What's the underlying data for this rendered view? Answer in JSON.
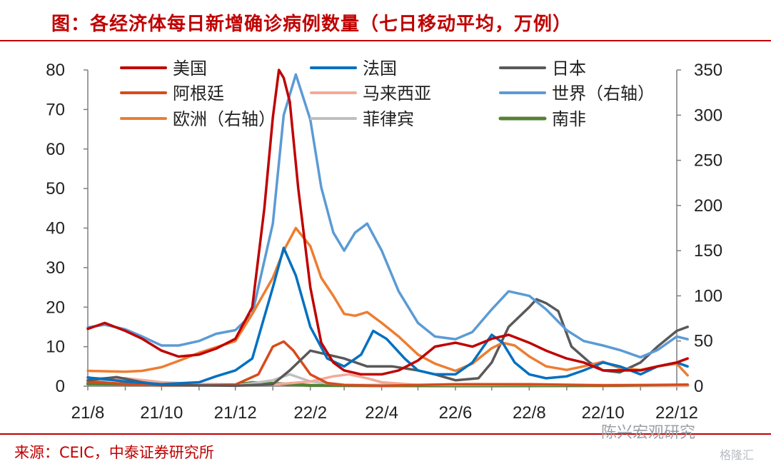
{
  "title": "图：各经济体每日新增确诊病例数量（七日移动平均，万例）",
  "source": "来源：CEIC，中泰证券研究所",
  "watermarks": [
    "陈兴宏观研究",
    "格隆汇"
  ],
  "chart_data": {
    "type": "line",
    "title": "图：各经济体每日新增确诊病例数量（七日移动平均，万例）",
    "x_tick_labels": [
      "21/8",
      "21/10",
      "21/12",
      "22/2",
      "22/4",
      "22/6",
      "22/8",
      "22/10",
      "22/12"
    ],
    "x_range": [
      "2021-08",
      "2022-12"
    ],
    "left_axis": {
      "ylim": [
        0,
        80
      ],
      "ticks": [
        0,
        10,
        20,
        30,
        40,
        50,
        60,
        70,
        80
      ]
    },
    "right_axis": {
      "ylim": [
        0,
        350
      ],
      "ticks": [
        0,
        50,
        100,
        150,
        200,
        250,
        300,
        350
      ]
    },
    "legend": {
      "placement": "top",
      "columns": 3
    },
    "series": [
      {
        "name": "美国",
        "axis": "left",
        "color": "#c00000",
        "points": [
          [
            "2021-08-01",
            14.5
          ],
          [
            "2021-08-15",
            16
          ],
          [
            "2021-09-01",
            14
          ],
          [
            "2021-09-15",
            12
          ],
          [
            "2021-10-01",
            9
          ],
          [
            "2021-10-15",
            7.5
          ],
          [
            "2021-11-01",
            8
          ],
          [
            "2021-11-15",
            9.5
          ],
          [
            "2021-12-01",
            12
          ],
          [
            "2021-12-15",
            20
          ],
          [
            "2021-12-25",
            45
          ],
          [
            "2022-01-01",
            68
          ],
          [
            "2022-01-06",
            80
          ],
          [
            "2022-01-10",
            78
          ],
          [
            "2022-01-15",
            72
          ],
          [
            "2022-01-22",
            50
          ],
          [
            "2022-02-01",
            25
          ],
          [
            "2022-02-10",
            11
          ],
          [
            "2022-02-20",
            6
          ],
          [
            "2022-03-01",
            4
          ],
          [
            "2022-03-15",
            3
          ],
          [
            "2022-04-01",
            3
          ],
          [
            "2022-04-15",
            4
          ],
          [
            "2022-05-01",
            6.5
          ],
          [
            "2022-05-15",
            10
          ],
          [
            "2022-06-01",
            11
          ],
          [
            "2022-06-15",
            10
          ],
          [
            "2022-07-01",
            12
          ],
          [
            "2022-07-15",
            13
          ],
          [
            "2022-08-01",
            11
          ],
          [
            "2022-08-15",
            9
          ],
          [
            "2022-09-01",
            7
          ],
          [
            "2022-09-15",
            6
          ],
          [
            "2022-10-01",
            4
          ],
          [
            "2022-10-15",
            4
          ],
          [
            "2022-11-01",
            4
          ],
          [
            "2022-11-15",
            5
          ],
          [
            "2022-12-01",
            6
          ],
          [
            "2022-12-10",
            7
          ]
        ]
      },
      {
        "name": "阿根廷",
        "axis": "left",
        "color": "#d84a1b",
        "points": [
          [
            "2021-08-01",
            1.2
          ],
          [
            "2021-09-01",
            0.6
          ],
          [
            "2021-10-01",
            0.2
          ],
          [
            "2021-11-01",
            0.2
          ],
          [
            "2021-12-01",
            0.4
          ],
          [
            "2021-12-20",
            3
          ],
          [
            "2022-01-01",
            10
          ],
          [
            "2022-01-10",
            11.3
          ],
          [
            "2022-01-18",
            9
          ],
          [
            "2022-02-01",
            3
          ],
          [
            "2022-02-15",
            0.8
          ],
          [
            "2022-03-01",
            0.3
          ],
          [
            "2022-04-01",
            0.1
          ],
          [
            "2022-06-01",
            0.5
          ],
          [
            "2022-08-01",
            0.5
          ],
          [
            "2022-10-01",
            0.2
          ],
          [
            "2022-12-10",
            0.4
          ]
        ]
      },
      {
        "name": "欧洲（右轴）",
        "axis": "right",
        "color": "#ed7d31",
        "points": [
          [
            "2021-08-01",
            17
          ],
          [
            "2021-09-01",
            16
          ],
          [
            "2021-09-15",
            17
          ],
          [
            "2021-10-01",
            21
          ],
          [
            "2021-10-15",
            28
          ],
          [
            "2021-11-01",
            37
          ],
          [
            "2021-11-15",
            43
          ],
          [
            "2021-12-01",
            50
          ],
          [
            "2021-12-15",
            80
          ],
          [
            "2022-01-01",
            120
          ],
          [
            "2022-01-10",
            150
          ],
          [
            "2022-01-20",
            175
          ],
          [
            "2022-02-01",
            155
          ],
          [
            "2022-02-10",
            120
          ],
          [
            "2022-02-20",
            100
          ],
          [
            "2022-03-01",
            80
          ],
          [
            "2022-03-10",
            78
          ],
          [
            "2022-03-20",
            82
          ],
          [
            "2022-04-01",
            70
          ],
          [
            "2022-04-15",
            55
          ],
          [
            "2022-05-01",
            35
          ],
          [
            "2022-05-15",
            25
          ],
          [
            "2022-06-01",
            17
          ],
          [
            "2022-06-15",
            25
          ],
          [
            "2022-07-01",
            42
          ],
          [
            "2022-07-10",
            48
          ],
          [
            "2022-07-20",
            45
          ],
          [
            "2022-08-01",
            33
          ],
          [
            "2022-08-15",
            22
          ],
          [
            "2022-09-01",
            18
          ],
          [
            "2022-09-15",
            22
          ],
          [
            "2022-10-01",
            27
          ],
          [
            "2022-10-15",
            20
          ],
          [
            "2022-11-01",
            18
          ],
          [
            "2022-11-15",
            22
          ],
          [
            "2022-12-01",
            25
          ],
          [
            "2022-12-10",
            12
          ]
        ]
      },
      {
        "name": "法国",
        "axis": "left",
        "color": "#0070c0",
        "points": [
          [
            "2021-08-01",
            2.2
          ],
          [
            "2021-09-01",
            1.2
          ],
          [
            "2021-10-01",
            0.5
          ],
          [
            "2021-11-01",
            1
          ],
          [
            "2021-11-15",
            2.5
          ],
          [
            "2021-12-01",
            4
          ],
          [
            "2021-12-15",
            7
          ],
          [
            "2022-01-01",
            25
          ],
          [
            "2022-01-10",
            35
          ],
          [
            "2022-01-20",
            28
          ],
          [
            "2022-02-01",
            15
          ],
          [
            "2022-02-15",
            7
          ],
          [
            "2022-03-01",
            5
          ],
          [
            "2022-03-15",
            8
          ],
          [
            "2022-03-25",
            14
          ],
          [
            "2022-04-05",
            12
          ],
          [
            "2022-04-20",
            7
          ],
          [
            "2022-05-01",
            4
          ],
          [
            "2022-05-15",
            3
          ],
          [
            "2022-06-01",
            3
          ],
          [
            "2022-06-15",
            6
          ],
          [
            "2022-07-01",
            13
          ],
          [
            "2022-07-10",
            11
          ],
          [
            "2022-07-20",
            6
          ],
          [
            "2022-08-01",
            3
          ],
          [
            "2022-08-15",
            2
          ],
          [
            "2022-09-01",
            2.5
          ],
          [
            "2022-09-15",
            4
          ],
          [
            "2022-10-01",
            6
          ],
          [
            "2022-10-15",
            5
          ],
          [
            "2022-11-01",
            3
          ],
          [
            "2022-11-15",
            5
          ],
          [
            "2022-12-01",
            6
          ],
          [
            "2022-12-10",
            5
          ]
        ]
      },
      {
        "name": "马来西亚",
        "axis": "left",
        "color": "#f4a996",
        "points": [
          [
            "2021-08-01",
            2
          ],
          [
            "2021-09-01",
            2
          ],
          [
            "2021-10-01",
            1
          ],
          [
            "2021-11-01",
            0.6
          ],
          [
            "2021-12-01",
            0.4
          ],
          [
            "2022-01-01",
            0.4
          ],
          [
            "2022-02-01",
            1.2
          ],
          [
            "2022-02-20",
            2.5
          ],
          [
            "2022-03-05",
            3
          ],
          [
            "2022-03-20",
            2
          ],
          [
            "2022-04-01",
            1
          ],
          [
            "2022-05-01",
            0.3
          ],
          [
            "2022-08-01",
            0.4
          ],
          [
            "2022-12-10",
            0.2
          ]
        ]
      },
      {
        "name": "菲律宾",
        "axis": "left",
        "color": "#bfbfbf",
        "points": [
          [
            "2021-08-01",
            1.2
          ],
          [
            "2021-09-01",
            2
          ],
          [
            "2021-10-01",
            1
          ],
          [
            "2021-11-01",
            0.3
          ],
          [
            "2021-12-01",
            0.1
          ],
          [
            "2022-01-01",
            1.5
          ],
          [
            "2022-01-15",
            3
          ],
          [
            "2022-02-01",
            1.2
          ],
          [
            "2022-03-01",
            0.3
          ],
          [
            "2022-08-01",
            0.4
          ],
          [
            "2022-12-10",
            0.1
          ]
        ]
      },
      {
        "name": "日本",
        "axis": "left",
        "color": "#595959",
        "points": [
          [
            "2021-08-01",
            1.5
          ],
          [
            "2021-08-25",
            2.3
          ],
          [
            "2021-09-15",
            1
          ],
          [
            "2021-10-01",
            0.3
          ],
          [
            "2021-12-01",
            0.1
          ],
          [
            "2022-01-01",
            0.5
          ],
          [
            "2022-01-15",
            4
          ],
          [
            "2022-02-01",
            9
          ],
          [
            "2022-02-15",
            8
          ],
          [
            "2022-03-01",
            7
          ],
          [
            "2022-03-20",
            5
          ],
          [
            "2022-04-10",
            5
          ],
          [
            "2022-05-01",
            4
          ],
          [
            "2022-05-15",
            3
          ],
          [
            "2022-06-01",
            1.5
          ],
          [
            "2022-06-20",
            2
          ],
          [
            "2022-07-01",
            6
          ],
          [
            "2022-07-15",
            15
          ],
          [
            "2022-08-01",
            20
          ],
          [
            "2022-08-07",
            22
          ],
          [
            "2022-08-15",
            21
          ],
          [
            "2022-08-25",
            19
          ],
          [
            "2022-09-05",
            10
          ],
          [
            "2022-09-20",
            6
          ],
          [
            "2022-10-01",
            4
          ],
          [
            "2022-10-15",
            3.5
          ],
          [
            "2022-11-01",
            6
          ],
          [
            "2022-11-15",
            10
          ],
          [
            "2022-12-01",
            14
          ],
          [
            "2022-12-10",
            15
          ]
        ]
      },
      {
        "name": "世界（右轴）",
        "axis": "right",
        "color": "#5b9bd5",
        "points": [
          [
            "2021-08-01",
            65
          ],
          [
            "2021-08-15",
            68
          ],
          [
            "2021-09-01",
            63
          ],
          [
            "2021-09-15",
            55
          ],
          [
            "2021-10-01",
            45
          ],
          [
            "2021-10-15",
            45
          ],
          [
            "2021-11-01",
            50
          ],
          [
            "2021-11-15",
            58
          ],
          [
            "2021-12-01",
            62
          ],
          [
            "2021-12-15",
            80
          ],
          [
            "2022-01-01",
            180
          ],
          [
            "2022-01-10",
            300
          ],
          [
            "2022-01-20",
            345
          ],
          [
            "2022-02-01",
            295
          ],
          [
            "2022-02-10",
            220
          ],
          [
            "2022-02-20",
            170
          ],
          [
            "2022-03-01",
            150
          ],
          [
            "2022-03-10",
            170
          ],
          [
            "2022-03-20",
            180
          ],
          [
            "2022-04-01",
            150
          ],
          [
            "2022-04-15",
            105
          ],
          [
            "2022-05-01",
            70
          ],
          [
            "2022-05-15",
            55
          ],
          [
            "2022-06-01",
            52
          ],
          [
            "2022-06-15",
            60
          ],
          [
            "2022-07-01",
            85
          ],
          [
            "2022-07-15",
            105
          ],
          [
            "2022-08-01",
            100
          ],
          [
            "2022-08-15",
            85
          ],
          [
            "2022-09-01",
            62
          ],
          [
            "2022-09-15",
            50
          ],
          [
            "2022-10-01",
            45
          ],
          [
            "2022-10-15",
            40
          ],
          [
            "2022-11-01",
            32
          ],
          [
            "2022-11-15",
            40
          ],
          [
            "2022-12-01",
            55
          ],
          [
            "2022-12-10",
            52
          ]
        ]
      },
      {
        "name": "南非",
        "axis": "left",
        "color": "#548235",
        "points": [
          [
            "2021-08-01",
            0.6
          ],
          [
            "2021-12-01",
            0.3
          ],
          [
            "2021-12-15",
            0.9
          ],
          [
            "2022-01-01",
            0.7
          ],
          [
            "2022-02-01",
            0.2
          ],
          [
            "2022-06-01",
            0.1
          ],
          [
            "2022-12-10",
            0.2
          ]
        ]
      }
    ]
  }
}
